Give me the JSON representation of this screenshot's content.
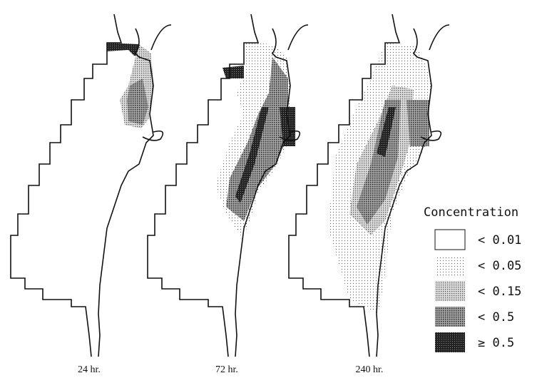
{
  "panels": [
    {
      "label": "24 hr."
    },
    {
      "label": "72 hr."
    },
    {
      "label": "240 hr."
    }
  ],
  "legend": {
    "title": "Concentration",
    "items": [
      {
        "label": "< 0.01"
      },
      {
        "label": "< 0.05"
      },
      {
        "label": "< 0.15"
      },
      {
        "label": "< 0.5"
      },
      {
        "label": "≥ 0.5"
      }
    ]
  }
}
